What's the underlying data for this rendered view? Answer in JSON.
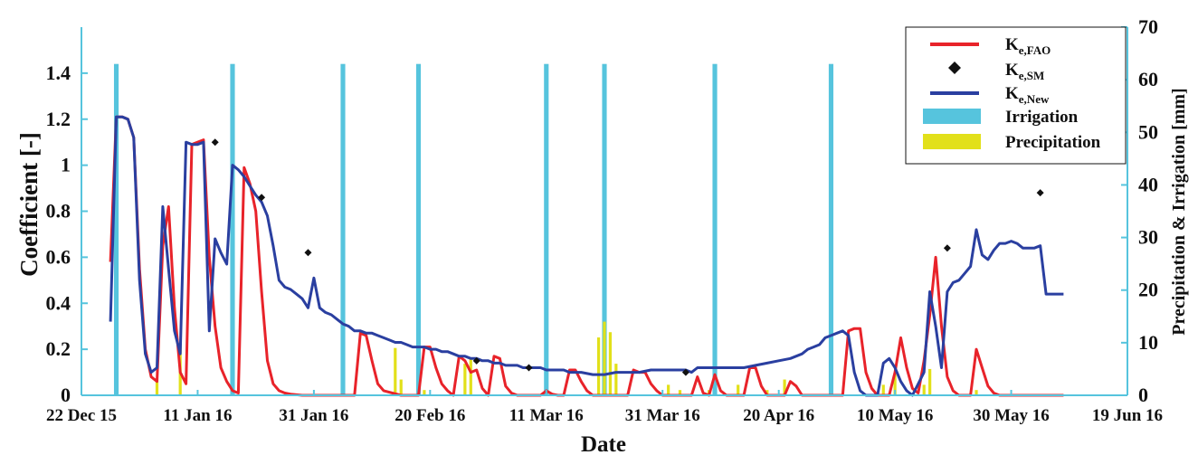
{
  "chart_data": {
    "type": "line",
    "title": "",
    "xlabel": "Date",
    "ylabel_left": "Coefficient [-]",
    "ylabel_right": "Precipitation & Irrigation [mm]",
    "x_ticks": [
      "22 Dec 15",
      "11 Jan 16",
      "31 Jan 16",
      "20 Feb 16",
      "11 Mar 16",
      "31 Mar 16",
      "20 Apr 16",
      "10 May 16",
      "30 May 16",
      "19 Jun 16"
    ],
    "x_range_days": [
      0,
      180
    ],
    "y_left_ticks": [
      "0",
      "0.2",
      "0.4",
      "0.6",
      "0.8",
      "1",
      "1.2",
      "1.4"
    ],
    "y_left_range": [
      0,
      1.6
    ],
    "y_right_ticks": [
      "0",
      "10",
      "20",
      "30",
      "40",
      "50",
      "60",
      "70"
    ],
    "y_right_range": [
      0,
      70
    ],
    "legend_position": "top-right",
    "legend": [
      {
        "key": "ke_fao",
        "base": "K",
        "sub": "e,FAO",
        "style": "line",
        "color": "#e8232a"
      },
      {
        "key": "ke_sm",
        "base": "K",
        "sub": "e,SM",
        "style": "marker",
        "color": "#111111"
      },
      {
        "key": "ke_new",
        "base": "K",
        "sub": "e,New",
        "style": "line",
        "color": "#2a3fa0"
      },
      {
        "key": "irrigation",
        "base": "Irrigation",
        "sub": "",
        "style": "bar",
        "color": "#56c4dd"
      },
      {
        "key": "precipitation",
        "base": "Precipitation",
        "sub": "",
        "style": "bar",
        "color": "#e2e01a"
      }
    ],
    "colors": {
      "ke_fao": "#e8232a",
      "ke_new": "#2a3fa0",
      "ke_sm": "#111111",
      "irrigation": "#56c4dd",
      "precipitation": "#e2e01a",
      "axis": "#56c4dd"
    },
    "series": [
      {
        "name": "Ke,FAO",
        "axis": "left",
        "kind": "line",
        "points": [
          [
            5,
            0.58
          ],
          [
            6,
            1.21
          ],
          [
            7,
            1.21
          ],
          [
            8,
            1.2
          ],
          [
            9,
            1.12
          ],
          [
            10,
            0.55
          ],
          [
            11,
            0.2
          ],
          [
            12,
            0.08
          ],
          [
            13,
            0.06
          ],
          [
            14,
            0.65
          ],
          [
            15,
            0.82
          ],
          [
            16,
            0.38
          ],
          [
            17,
            0.1
          ],
          [
            18,
            0.05
          ],
          [
            19,
            1.09
          ],
          [
            20,
            1.1
          ],
          [
            21,
            1.11
          ],
          [
            22,
            0.6
          ],
          [
            23,
            0.3
          ],
          [
            24,
            0.12
          ],
          [
            25,
            0.06
          ],
          [
            26,
            0.02
          ],
          [
            27,
            0.01
          ],
          [
            28,
            0.99
          ],
          [
            29,
            0.92
          ],
          [
            30,
            0.8
          ],
          [
            31,
            0.45
          ],
          [
            32,
            0.15
          ],
          [
            33,
            0.05
          ],
          [
            34,
            0.02
          ],
          [
            35,
            0.01
          ],
          [
            36,
            0.005
          ],
          [
            38,
            0.0
          ],
          [
            47,
            0.0
          ],
          [
            48,
            0.27
          ],
          [
            49,
            0.26
          ],
          [
            50,
            0.15
          ],
          [
            51,
            0.05
          ],
          [
            52,
            0.02
          ],
          [
            55,
            0.0
          ],
          [
            58,
            0.0
          ],
          [
            59,
            0.21
          ],
          [
            60,
            0.21
          ],
          [
            61,
            0.12
          ],
          [
            62,
            0.05
          ],
          [
            63,
            0.02
          ],
          [
            64,
            0.0
          ],
          [
            65,
            0.17
          ],
          [
            66,
            0.15
          ],
          [
            67,
            0.1
          ],
          [
            68,
            0.11
          ],
          [
            69,
            0.03
          ],
          [
            70,
            0.0
          ],
          [
            71,
            0.17
          ],
          [
            72,
            0.16
          ],
          [
            73,
            0.04
          ],
          [
            74,
            0.01
          ],
          [
            75,
            0.0
          ],
          [
            79,
            0.0
          ],
          [
            80,
            0.02
          ],
          [
            81,
            0.005
          ],
          [
            82,
            0.0
          ],
          [
            83,
            0.0
          ],
          [
            84,
            0.11
          ],
          [
            85,
            0.11
          ],
          [
            86,
            0.06
          ],
          [
            87,
            0.02
          ],
          [
            88,
            0.0
          ],
          [
            94,
            0.0
          ],
          [
            95,
            0.11
          ],
          [
            96,
            0.1
          ],
          [
            97,
            0.1
          ],
          [
            98,
            0.05
          ],
          [
            99,
            0.02
          ],
          [
            100,
            0.0
          ],
          [
            105,
            0.0
          ],
          [
            106,
            0.08
          ],
          [
            107,
            0.01
          ],
          [
            108,
            0.0
          ],
          [
            109,
            0.09
          ],
          [
            110,
            0.02
          ],
          [
            111,
            0.0
          ],
          [
            114,
            0.0
          ],
          [
            115,
            0.12
          ],
          [
            116,
            0.12
          ],
          [
            117,
            0.04
          ],
          [
            118,
            0.0
          ],
          [
            121,
            0.0
          ],
          [
            122,
            0.06
          ],
          [
            123,
            0.04
          ],
          [
            124,
            0.0
          ],
          [
            131,
            0.0
          ],
          [
            132,
            0.28
          ],
          [
            133,
            0.29
          ],
          [
            134,
            0.29
          ],
          [
            135,
            0.1
          ],
          [
            136,
            0.03
          ],
          [
            137,
            0.0
          ],
          [
            139,
            0.0
          ],
          [
            140,
            0.1
          ],
          [
            141,
            0.25
          ],
          [
            142,
            0.12
          ],
          [
            143,
            0.03
          ],
          [
            144,
            0.01
          ],
          [
            145,
            0.15
          ],
          [
            146,
            0.35
          ],
          [
            147,
            0.6
          ],
          [
            148,
            0.3
          ],
          [
            149,
            0.08
          ],
          [
            150,
            0.02
          ],
          [
            151,
            0.0
          ],
          [
            153,
            0.0
          ],
          [
            154,
            0.2
          ],
          [
            155,
            0.12
          ],
          [
            156,
            0.04
          ],
          [
            157,
            0.01
          ],
          [
            158,
            0.0
          ],
          [
            169,
            0.0
          ]
        ]
      },
      {
        "name": "Ke,New",
        "axis": "left",
        "kind": "line",
        "points": [
          [
            5,
            0.32
          ],
          [
            6,
            1.21
          ],
          [
            7,
            1.21
          ],
          [
            8,
            1.2
          ],
          [
            9,
            1.12
          ],
          [
            10,
            0.5
          ],
          [
            11,
            0.18
          ],
          [
            12,
            0.1
          ],
          [
            13,
            0.12
          ],
          [
            14,
            0.82
          ],
          [
            15,
            0.55
          ],
          [
            16,
            0.28
          ],
          [
            17,
            0.18
          ],
          [
            18,
            1.1
          ],
          [
            19,
            1.09
          ],
          [
            20,
            1.09
          ],
          [
            21,
            1.1
          ],
          [
            22,
            0.28
          ],
          [
            23,
            0.68
          ],
          [
            24,
            0.62
          ],
          [
            25,
            0.57
          ],
          [
            26,
            1.0
          ],
          [
            27,
            0.98
          ],
          [
            28,
            0.95
          ],
          [
            29,
            0.91
          ],
          [
            30,
            0.87
          ],
          [
            31,
            0.84
          ],
          [
            32,
            0.78
          ],
          [
            33,
            0.65
          ],
          [
            34,
            0.5
          ],
          [
            35,
            0.47
          ],
          [
            36,
            0.46
          ],
          [
            37,
            0.44
          ],
          [
            38,
            0.42
          ],
          [
            39,
            0.38
          ],
          [
            40,
            0.51
          ],
          [
            41,
            0.38
          ],
          [
            42,
            0.36
          ],
          [
            43,
            0.35
          ],
          [
            44,
            0.33
          ],
          [
            45,
            0.31
          ],
          [
            46,
            0.3
          ],
          [
            47,
            0.28
          ],
          [
            48,
            0.28
          ],
          [
            49,
            0.27
          ],
          [
            50,
            0.27
          ],
          [
            51,
            0.26
          ],
          [
            52,
            0.25
          ],
          [
            53,
            0.24
          ],
          [
            54,
            0.23
          ],
          [
            55,
            0.23
          ],
          [
            56,
            0.22
          ],
          [
            57,
            0.21
          ],
          [
            58,
            0.21
          ],
          [
            59,
            0.21
          ],
          [
            60,
            0.2
          ],
          [
            61,
            0.2
          ],
          [
            62,
            0.19
          ],
          [
            63,
            0.19
          ],
          [
            64,
            0.18
          ],
          [
            65,
            0.17
          ],
          [
            66,
            0.17
          ],
          [
            67,
            0.16
          ],
          [
            68,
            0.16
          ],
          [
            69,
            0.15
          ],
          [
            70,
            0.15
          ],
          [
            71,
            0.14
          ],
          [
            72,
            0.14
          ],
          [
            73,
            0.13
          ],
          [
            74,
            0.13
          ],
          [
            75,
            0.13
          ],
          [
            76,
            0.12
          ],
          [
            77,
            0.12
          ],
          [
            78,
            0.12
          ],
          [
            79,
            0.12
          ],
          [
            80,
            0.11
          ],
          [
            82,
            0.11
          ],
          [
            83,
            0.11
          ],
          [
            84,
            0.1
          ],
          [
            85,
            0.1
          ],
          [
            86,
            0.1
          ],
          [
            88,
            0.09
          ],
          [
            90,
            0.09
          ],
          [
            92,
            0.1
          ],
          [
            94,
            0.1
          ],
          [
            96,
            0.1
          ],
          [
            98,
            0.11
          ],
          [
            100,
            0.11
          ],
          [
            102,
            0.11
          ],
          [
            104,
            0.11
          ],
          [
            105,
            0.1
          ],
          [
            106,
            0.12
          ],
          [
            108,
            0.12
          ],
          [
            110,
            0.12
          ],
          [
            112,
            0.12
          ],
          [
            114,
            0.12
          ],
          [
            116,
            0.13
          ],
          [
            118,
            0.14
          ],
          [
            120,
            0.15
          ],
          [
            122,
            0.16
          ],
          [
            124,
            0.18
          ],
          [
            125,
            0.2
          ],
          [
            126,
            0.21
          ],
          [
            127,
            0.22
          ],
          [
            128,
            0.25
          ],
          [
            129,
            0.26
          ],
          [
            130,
            0.27
          ],
          [
            131,
            0.28
          ],
          [
            132,
            0.26
          ],
          [
            133,
            0.1
          ],
          [
            134,
            0.02
          ],
          [
            135,
            0.0
          ],
          [
            136,
            0.0
          ],
          [
            137,
            0.0
          ],
          [
            138,
            0.14
          ],
          [
            139,
            0.16
          ],
          [
            140,
            0.12
          ],
          [
            141,
            0.06
          ],
          [
            142,
            0.02
          ],
          [
            143,
            0.0
          ],
          [
            145,
            0.1
          ],
          [
            146,
            0.45
          ],
          [
            147,
            0.3
          ],
          [
            148,
            0.12
          ],
          [
            149,
            0.45
          ],
          [
            150,
            0.49
          ],
          [
            151,
            0.5
          ],
          [
            152,
            0.53
          ],
          [
            153,
            0.56
          ],
          [
            154,
            0.72
          ],
          [
            155,
            0.61
          ],
          [
            156,
            0.59
          ],
          [
            157,
            0.63
          ],
          [
            158,
            0.66
          ],
          [
            159,
            0.66
          ],
          [
            160,
            0.67
          ],
          [
            161,
            0.66
          ],
          [
            162,
            0.64
          ],
          [
            163,
            0.64
          ],
          [
            164,
            0.64
          ],
          [
            165,
            0.65
          ],
          [
            166,
            0.44
          ],
          [
            167,
            0.44
          ],
          [
            168,
            0.44
          ],
          [
            169,
            0.44
          ]
        ]
      },
      {
        "name": "Ke,SM",
        "axis": "left",
        "kind": "scatter",
        "points": [
          [
            23,
            1.1
          ],
          [
            31,
            0.86
          ],
          [
            39,
            0.62
          ],
          [
            68,
            0.15
          ],
          [
            77,
            0.12
          ],
          [
            104,
            0.1
          ],
          [
            149,
            0.64
          ],
          [
            165,
            0.88
          ]
        ]
      },
      {
        "name": "Irrigation",
        "axis": "right",
        "kind": "bar",
        "bar_width_days": 0.8,
        "points": [
          [
            6,
            63
          ],
          [
            26,
            63
          ],
          [
            45,
            63
          ],
          [
            58,
            63
          ],
          [
            80,
            63
          ],
          [
            90,
            63
          ],
          [
            109,
            63
          ],
          [
            129,
            63
          ]
        ]
      },
      {
        "name": "Precipitation",
        "axis": "right",
        "kind": "bar",
        "bar_width_days": 0.5,
        "points": [
          [
            13,
            3
          ],
          [
            17,
            10
          ],
          [
            54,
            9
          ],
          [
            55,
            3
          ],
          [
            59,
            1
          ],
          [
            66,
            6
          ],
          [
            67,
            7
          ],
          [
            89,
            11
          ],
          [
            90,
            14
          ],
          [
            91,
            12
          ],
          [
            92,
            6
          ],
          [
            101,
            2
          ],
          [
            103,
            1
          ],
          [
            108,
            1
          ],
          [
            113,
            2
          ],
          [
            118,
            1
          ],
          [
            121,
            3
          ],
          [
            138,
            2
          ],
          [
            140,
            4
          ],
          [
            145,
            2
          ],
          [
            146,
            5
          ],
          [
            154,
            1
          ]
        ]
      }
    ]
  }
}
